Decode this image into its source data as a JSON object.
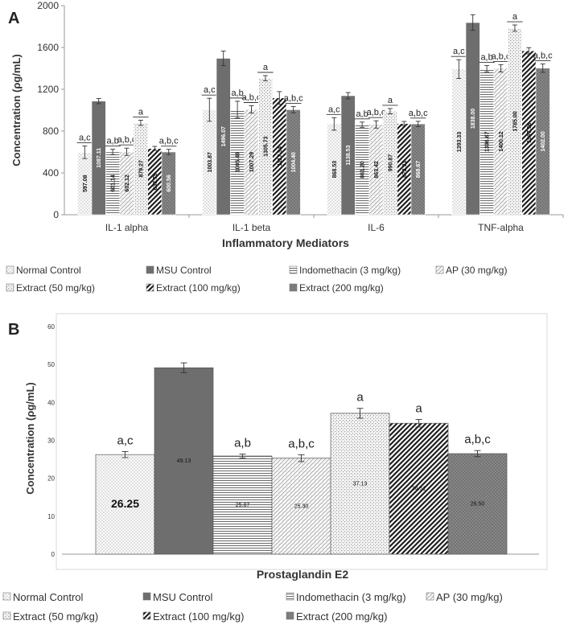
{
  "panel_a_label": "A",
  "panel_b_label": "B",
  "colors": {
    "normal": "#f4f4f4",
    "msu": "#6f6f6f",
    "indo": "#ffffff",
    "ap": "#f7f7f7",
    "e50": "#f3f3f3",
    "e100": "#ffffff",
    "e200": "#8c8c8c",
    "axis": "#999999",
    "text": "#333333"
  },
  "chart_data": [
    {
      "type": "bar",
      "title": "",
      "xlabel": "Inflammatory Mediators",
      "ylabel": "Concentration (ρg/mL)",
      "ylim": [
        0,
        2000
      ],
      "yticks": [
        "0",
        "400",
        "800",
        "1200",
        "1600",
        "2000"
      ],
      "ytick_values": [
        0,
        400,
        800,
        1200,
        1600,
        2000
      ],
      "grid": false,
      "legend_position": "bottom",
      "categories": [
        "IL-1 alpha",
        "IL-1 beta",
        "IL-6",
        "TNF-alpha"
      ],
      "series": [
        {
          "name": "Normal Control",
          "pattern": "dots",
          "values": [
            597.08,
            1003.87,
            868.53,
            1393.33
          ],
          "labels": [
            "597.08",
            "1003.87",
            "868.53",
            "1393.33"
          ],
          "errors": [
            60,
            110,
            60,
            90
          ],
          "sig": [
            "a,c",
            "a,c",
            "a,c",
            "a,c"
          ]
        },
        {
          "name": "MSU Control",
          "pattern": "solid-dark",
          "values": [
            1087.11,
            1496.07,
            1138.53,
            1838.0
          ],
          "labels": [
            "1087.11",
            "1496.07",
            "1138.53",
            "1838.00"
          ],
          "errors": [
            25,
            70,
            30,
            75
          ],
          "sig": [
            "",
            "",
            "",
            ""
          ]
        },
        {
          "name": "Indomethacin (3 mg/kg)",
          "pattern": "hlines",
          "values": [
            601.14,
            1005.49,
            861.2,
            1396.67
          ],
          "labels": [
            "601.14",
            "1005.49",
            "861.20",
            "1396.67"
          ],
          "errors": [
            25,
            80,
            25,
            30
          ],
          "sig": [
            "a,b",
            "a,b",
            "a,b",
            "a,b"
          ]
        },
        {
          "name": "AP (30 mg/kg)",
          "pattern": "diag-light",
          "values": [
            602.12,
            1007.29,
            863.42,
            1400.12
          ],
          "labels": [
            "602.12",
            "1007.29",
            "863.42",
            "1400.12"
          ],
          "errors": [
            35,
            35,
            35,
            35
          ],
          "sig": [
            "a,b,c",
            "a,b,c",
            "a,b,c",
            "a,b,c"
          ]
        },
        {
          "name": "Extract (50 mg/kg)",
          "pattern": "checker",
          "values": [
            879.27,
            1305.73,
            990.87,
            1785.0
          ],
          "labels": [
            "879.27",
            "1305.73",
            "990.87",
            "1785.00"
          ],
          "errors": [
            25,
            25,
            25,
            30
          ],
          "sig": [
            "a",
            "a",
            "a",
            "a"
          ]
        },
        {
          "name": "Extract (100 mg/kg)",
          "pattern": "diag-bold",
          "values": [
            633.79,
            1117.54,
            872.31,
            1567.96
          ],
          "labels": [
            "633.79",
            "1117.54",
            "872.31",
            "1567.96"
          ],
          "errors": [
            20,
            60,
            20,
            30
          ],
          "sig": [
            "",
            "",
            "",
            ""
          ]
        },
        {
          "name": "Extract (200 mg/kg)",
          "pattern": "grid-dark",
          "values": [
            600.56,
            1004.4,
            868.67,
            1402.0
          ],
          "labels": [
            "600.56",
            "1004.40",
            "868.67",
            "1402.00"
          ],
          "errors": [
            25,
            30,
            25,
            40
          ],
          "sig": [
            "a,b,c",
            "a,b,c",
            "a,b,c",
            "a,b,c"
          ]
        }
      ],
      "legend": [
        "Normal Control",
        "MSU Control",
        "Indomethacin (3 mg/kg)",
        "AP (30 mg/kg)",
        "Extract (50 mg/kg)",
        "Extract (100 mg/kg)",
        "Extract (200 mg/kg)"
      ]
    },
    {
      "type": "bar",
      "title": "",
      "xlabel": "Prostaglandin E2",
      "ylabel": "Concentration (ρg/mL)",
      "ylim": [
        0,
        60
      ],
      "yticks": [
        "0",
        "10",
        "20",
        "30",
        "40",
        "50",
        "60"
      ],
      "ytick_values": [
        0,
        10,
        20,
        30,
        40,
        50,
        60
      ],
      "grid": false,
      "legend_position": "bottom",
      "categories": [
        "Prostaglandin E2"
      ],
      "series": [
        {
          "name": "Normal Control",
          "pattern": "dots",
          "value": 26.25,
          "label": "26.25",
          "error": 0.8,
          "sig": "a,c"
        },
        {
          "name": "MSU Control",
          "pattern": "solid-dark",
          "value": 49.13,
          "label": "49.13",
          "error": 1.3,
          "sig": ""
        },
        {
          "name": "Indomethacin (3 mg/kg)",
          "pattern": "hlines",
          "value": 25.87,
          "label": "25.87",
          "error": 0.5,
          "sig": "a,b"
        },
        {
          "name": "AP (30 mg/kg)",
          "pattern": "diag-light",
          "value": 25.3,
          "label": "25.30",
          "error": 0.9,
          "sig": "a,b,c"
        },
        {
          "name": "Extract (50 mg/kg)",
          "pattern": "checker",
          "value": 37.13,
          "label": "37.13",
          "error": 1.3,
          "sig": "a"
        },
        {
          "name": "Extract (100 mg/kg)",
          "pattern": "diag-bold",
          "value": 34.51,
          "label": "34.51",
          "error": 1.0,
          "sig": "a"
        },
        {
          "name": "Extract (200 mg/kg)",
          "pattern": "grid-dark",
          "value": 26.5,
          "label": "26.50",
          "error": 0.8,
          "sig": "a,b,c"
        }
      ],
      "legend": [
        "Normal Control",
        "MSU Control",
        "Indomethacin (3 mg/kg)",
        "AP (30 mg/kg)",
        "Extract (50 mg/kg)",
        "Extract (100 mg/kg)",
        "Extract (200 mg/kg)"
      ]
    }
  ]
}
